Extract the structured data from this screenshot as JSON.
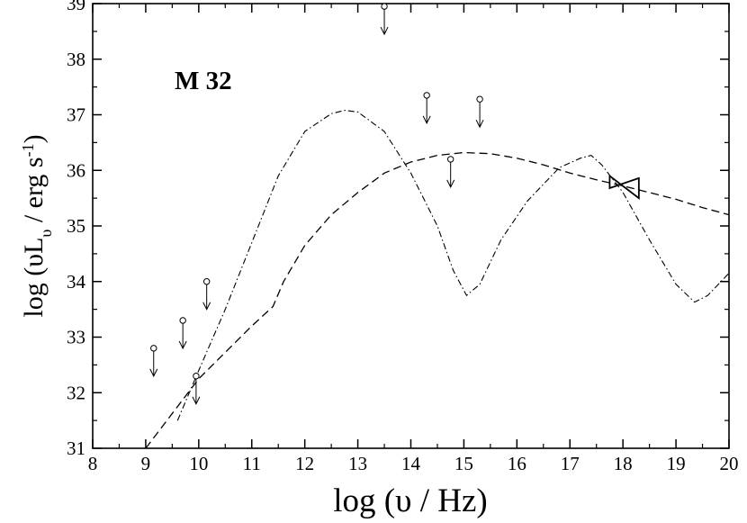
{
  "chart_data": {
    "type": "line",
    "title": "",
    "annotation": "M 32",
    "xlabel": "log  (υ  / Hz)",
    "ylabel": {
      "prefix": "log  (υL",
      "subscript": "υ",
      "middle": " / erg s",
      "superscript": "-1",
      "suffix": ")"
    },
    "xlim": [
      8,
      20
    ],
    "ylim": [
      31,
      39
    ],
    "xticks": [
      8,
      9,
      10,
      11,
      12,
      13,
      14,
      15,
      16,
      17,
      18,
      19,
      20
    ],
    "yticks": [
      31,
      32,
      33,
      34,
      35,
      36,
      37,
      38,
      39
    ],
    "grid": false,
    "series": [
      {
        "style": "dashed",
        "points": [
          [
            9.0,
            31.0
          ],
          [
            10.0,
            32.25
          ],
          [
            11.0,
            33.2
          ],
          [
            11.4,
            33.55
          ],
          [
            11.6,
            34.0
          ],
          [
            12.0,
            34.65
          ],
          [
            12.5,
            35.2
          ],
          [
            13.0,
            35.6
          ],
          [
            13.5,
            35.95
          ],
          [
            14.0,
            36.15
          ],
          [
            14.5,
            36.27
          ],
          [
            15.0,
            36.32
          ],
          [
            15.5,
            36.3
          ],
          [
            16.0,
            36.22
          ],
          [
            16.5,
            36.1
          ],
          [
            17.0,
            35.95
          ],
          [
            17.5,
            35.83
          ],
          [
            18.0,
            35.72
          ],
          [
            18.5,
            35.6
          ],
          [
            19.0,
            35.48
          ],
          [
            19.5,
            35.33
          ],
          [
            20.0,
            35.2
          ]
        ]
      },
      {
        "style": "dash-dot",
        "points": [
          [
            9.6,
            31.5
          ],
          [
            10.0,
            32.4
          ],
          [
            10.5,
            33.5
          ],
          [
            11.0,
            34.7
          ],
          [
            11.5,
            35.9
          ],
          [
            12.0,
            36.7
          ],
          [
            12.5,
            37.02
          ],
          [
            12.75,
            37.08
          ],
          [
            13.0,
            37.05
          ],
          [
            13.5,
            36.7
          ],
          [
            14.0,
            35.95
          ],
          [
            14.5,
            35.0
          ],
          [
            14.8,
            34.2
          ],
          [
            15.05,
            33.75
          ],
          [
            15.3,
            33.95
          ],
          [
            15.7,
            34.75
          ],
          [
            16.2,
            35.45
          ],
          [
            16.8,
            36.05
          ],
          [
            17.2,
            36.22
          ],
          [
            17.4,
            36.27
          ],
          [
            17.6,
            36.1
          ],
          [
            18.0,
            35.6
          ],
          [
            18.5,
            34.75
          ],
          [
            19.0,
            33.95
          ],
          [
            19.35,
            33.63
          ],
          [
            19.6,
            33.75
          ],
          [
            20.0,
            34.15
          ]
        ]
      }
    ],
    "upper_limits": [
      {
        "x": 9.15,
        "y": 32.8
      },
      {
        "x": 9.7,
        "y": 33.3
      },
      {
        "x": 9.95,
        "y": 32.3
      },
      {
        "x": 10.15,
        "y": 34.0
      },
      {
        "x": 13.5,
        "y": 38.95
      },
      {
        "x": 14.3,
        "y": 37.35
      },
      {
        "x": 14.75,
        "y": 36.2
      },
      {
        "x": 15.3,
        "y": 37.28
      }
    ],
    "bowtie": {
      "x_range": [
        17.75,
        18.3
      ],
      "left": [
        35.9,
        35.68
      ],
      "right": [
        35.5,
        35.86
      ]
    }
  }
}
